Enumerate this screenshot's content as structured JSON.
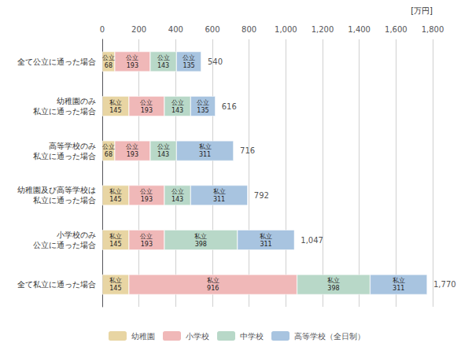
{
  "chart_data": {
    "type": "bar",
    "orientation": "horizontal",
    "stacked": true,
    "data_labels": true,
    "grid": true,
    "legend": "bottom",
    "xlabel": "[万円]",
    "categories": [
      "全て公立に通った場合",
      "幼稚園のみ\n私立に通った場合",
      "高等学校のみ\n私立に通った場合",
      "幼稚園及び高等学校は\n私立に通った場合",
      "小学校のみ\n公立に通った場合",
      "全て私立に通った場合"
    ],
    "series": [
      {
        "name": "幼稚園",
        "color": "#e8d5a3",
        "values": [
          68,
          145,
          68,
          145,
          145,
          145
        ],
        "value_labels": [
          "公立\n68",
          "私立\n145",
          "公立\n68",
          "私立\n145",
          "私立\n145",
          "私立\n145"
        ]
      },
      {
        "name": "小学校",
        "color": "#f0b8b8",
        "values": [
          193,
          193,
          193,
          193,
          193,
          916
        ],
        "value_labels": [
          "公立\n193",
          "公立\n193",
          "公立\n193",
          "公立\n193",
          "公立\n193",
          "私立\n916"
        ]
      },
      {
        "name": "中学校",
        "color": "#b8d8c8",
        "values": [
          143,
          143,
          143,
          143,
          398,
          398
        ],
        "value_labels": [
          "公立\n143",
          "公立\n143",
          "公立\n143",
          "公立\n143",
          "私立\n398",
          "私立\n398"
        ]
      },
      {
        "name": "高等学校（全日制）",
        "color": "#a8c4e0",
        "values": [
          135,
          135,
          311,
          311,
          311,
          311
        ],
        "value_labels": [
          "公立\n135",
          "公立\n135",
          "私立\n311",
          "私立\n311",
          "私立\n311",
          "私立\n311"
        ]
      }
    ],
    "totals": [
      540,
      616,
      716,
      792,
      {
        "value": 1047,
        "label": "1,047"
      },
      {
        "value": 1770,
        "label": "1,770"
      }
    ],
    "xlim": [
      0,
      1800
    ],
    "xticks": [
      0,
      200,
      400,
      600,
      800,
      {
        "value": 1000,
        "label": "1,000"
      },
      {
        "value": 1200,
        "label": "1,200"
      },
      {
        "value": 1400,
        "label": "1,400"
      },
      {
        "value": 1600,
        "label": "1,600"
      },
      {
        "value": 1800,
        "label": "1,800"
      }
    ]
  }
}
